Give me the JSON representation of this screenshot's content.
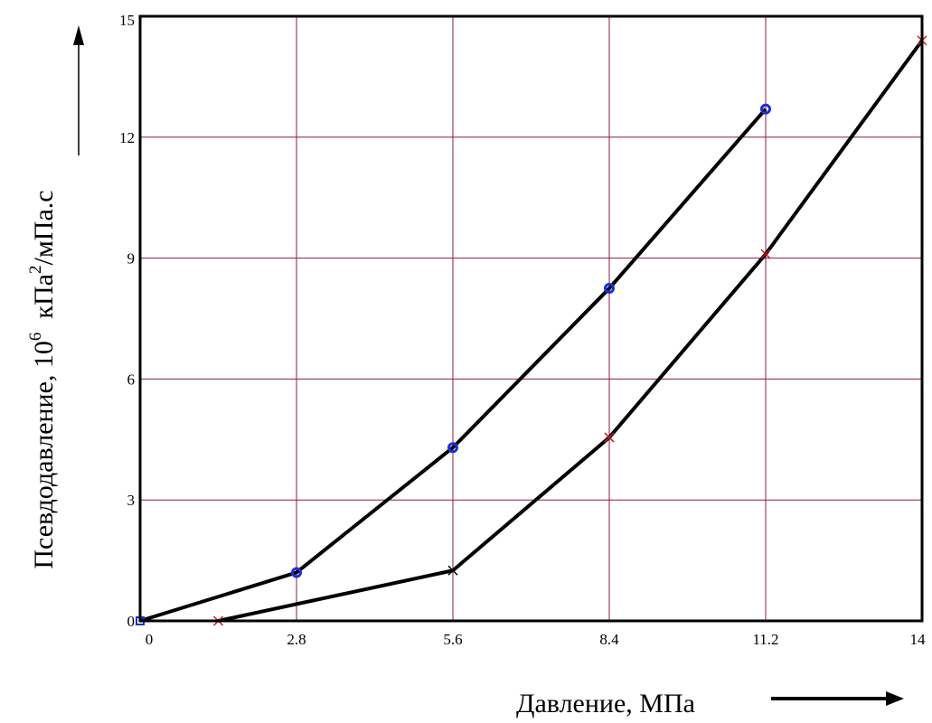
{
  "chart_data": {
    "type": "line",
    "xlabel": "Давление, МПа",
    "ylabel": {
      "prefix": "Псевдодавление, 10",
      "exponent": "6",
      "unit_base": "  кПа",
      "unit_exp": "2",
      "unit_suffix": "/мПа.с"
    },
    "xlim": [
      0,
      14
    ],
    "ylim": [
      0,
      15
    ],
    "x_ticks": [
      {
        "value": 0,
        "label": "0"
      },
      {
        "value": 2.8,
        "label": "2.8"
      },
      {
        "value": 5.6,
        "label": "5.6"
      },
      {
        "value": 8.4,
        "label": "8.4"
      },
      {
        "value": 11.2,
        "label": "11.2"
      },
      {
        "value": 14,
        "label": "14"
      }
    ],
    "y_ticks": [
      {
        "value": 0,
        "label": "0"
      },
      {
        "value": 3,
        "label": "3"
      },
      {
        "value": 6,
        "label": "6"
      },
      {
        "value": 9,
        "label": "9"
      },
      {
        "value": 12,
        "label": "12"
      },
      {
        "value": 15,
        "label": "15"
      }
    ],
    "grid": true,
    "grid_color": "#8b1c4a",
    "series": [
      {
        "marker": "circle",
        "marker_color": "#1a2fd6",
        "line_color": "#000000",
        "x": [
          0,
          2.8,
          5.6,
          8.4,
          11.2
        ],
        "y": [
          0,
          1.2,
          4.3,
          8.25,
          12.7
        ]
      },
      {
        "marker": "cross",
        "marker_color": "#cc1a1a",
        "line_color": "#000000",
        "x": [
          1.4,
          5.6,
          8.4,
          11.2,
          14.0
        ],
        "y": [
          0,
          1.25,
          4.55,
          9.1,
          14.4
        ]
      }
    ]
  }
}
